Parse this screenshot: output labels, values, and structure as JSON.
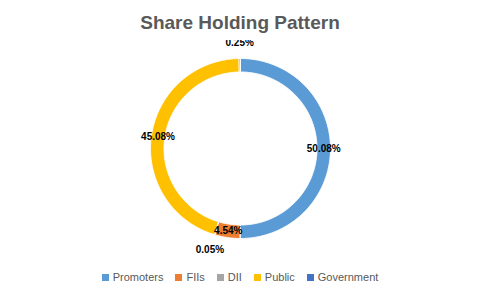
{
  "chart_data": {
    "type": "donut",
    "title": "Share Holding Pattern",
    "categories": [
      "Promoters",
      "FIIs",
      "DII",
      "Public",
      "Government"
    ],
    "values": [
      50.08,
      4.54,
      0.05,
      45.08,
      0.25
    ],
    "value_labels": [
      "50.08%",
      "4.54%",
      "0.05%",
      "45.08%",
      "0.25%"
    ],
    "colors": [
      "#5b9bd5",
      "#ed7d31",
      "#a5a5a5",
      "#ffc000",
      "#4472c4"
    ],
    "data_labels": true,
    "legend": "bottom"
  }
}
